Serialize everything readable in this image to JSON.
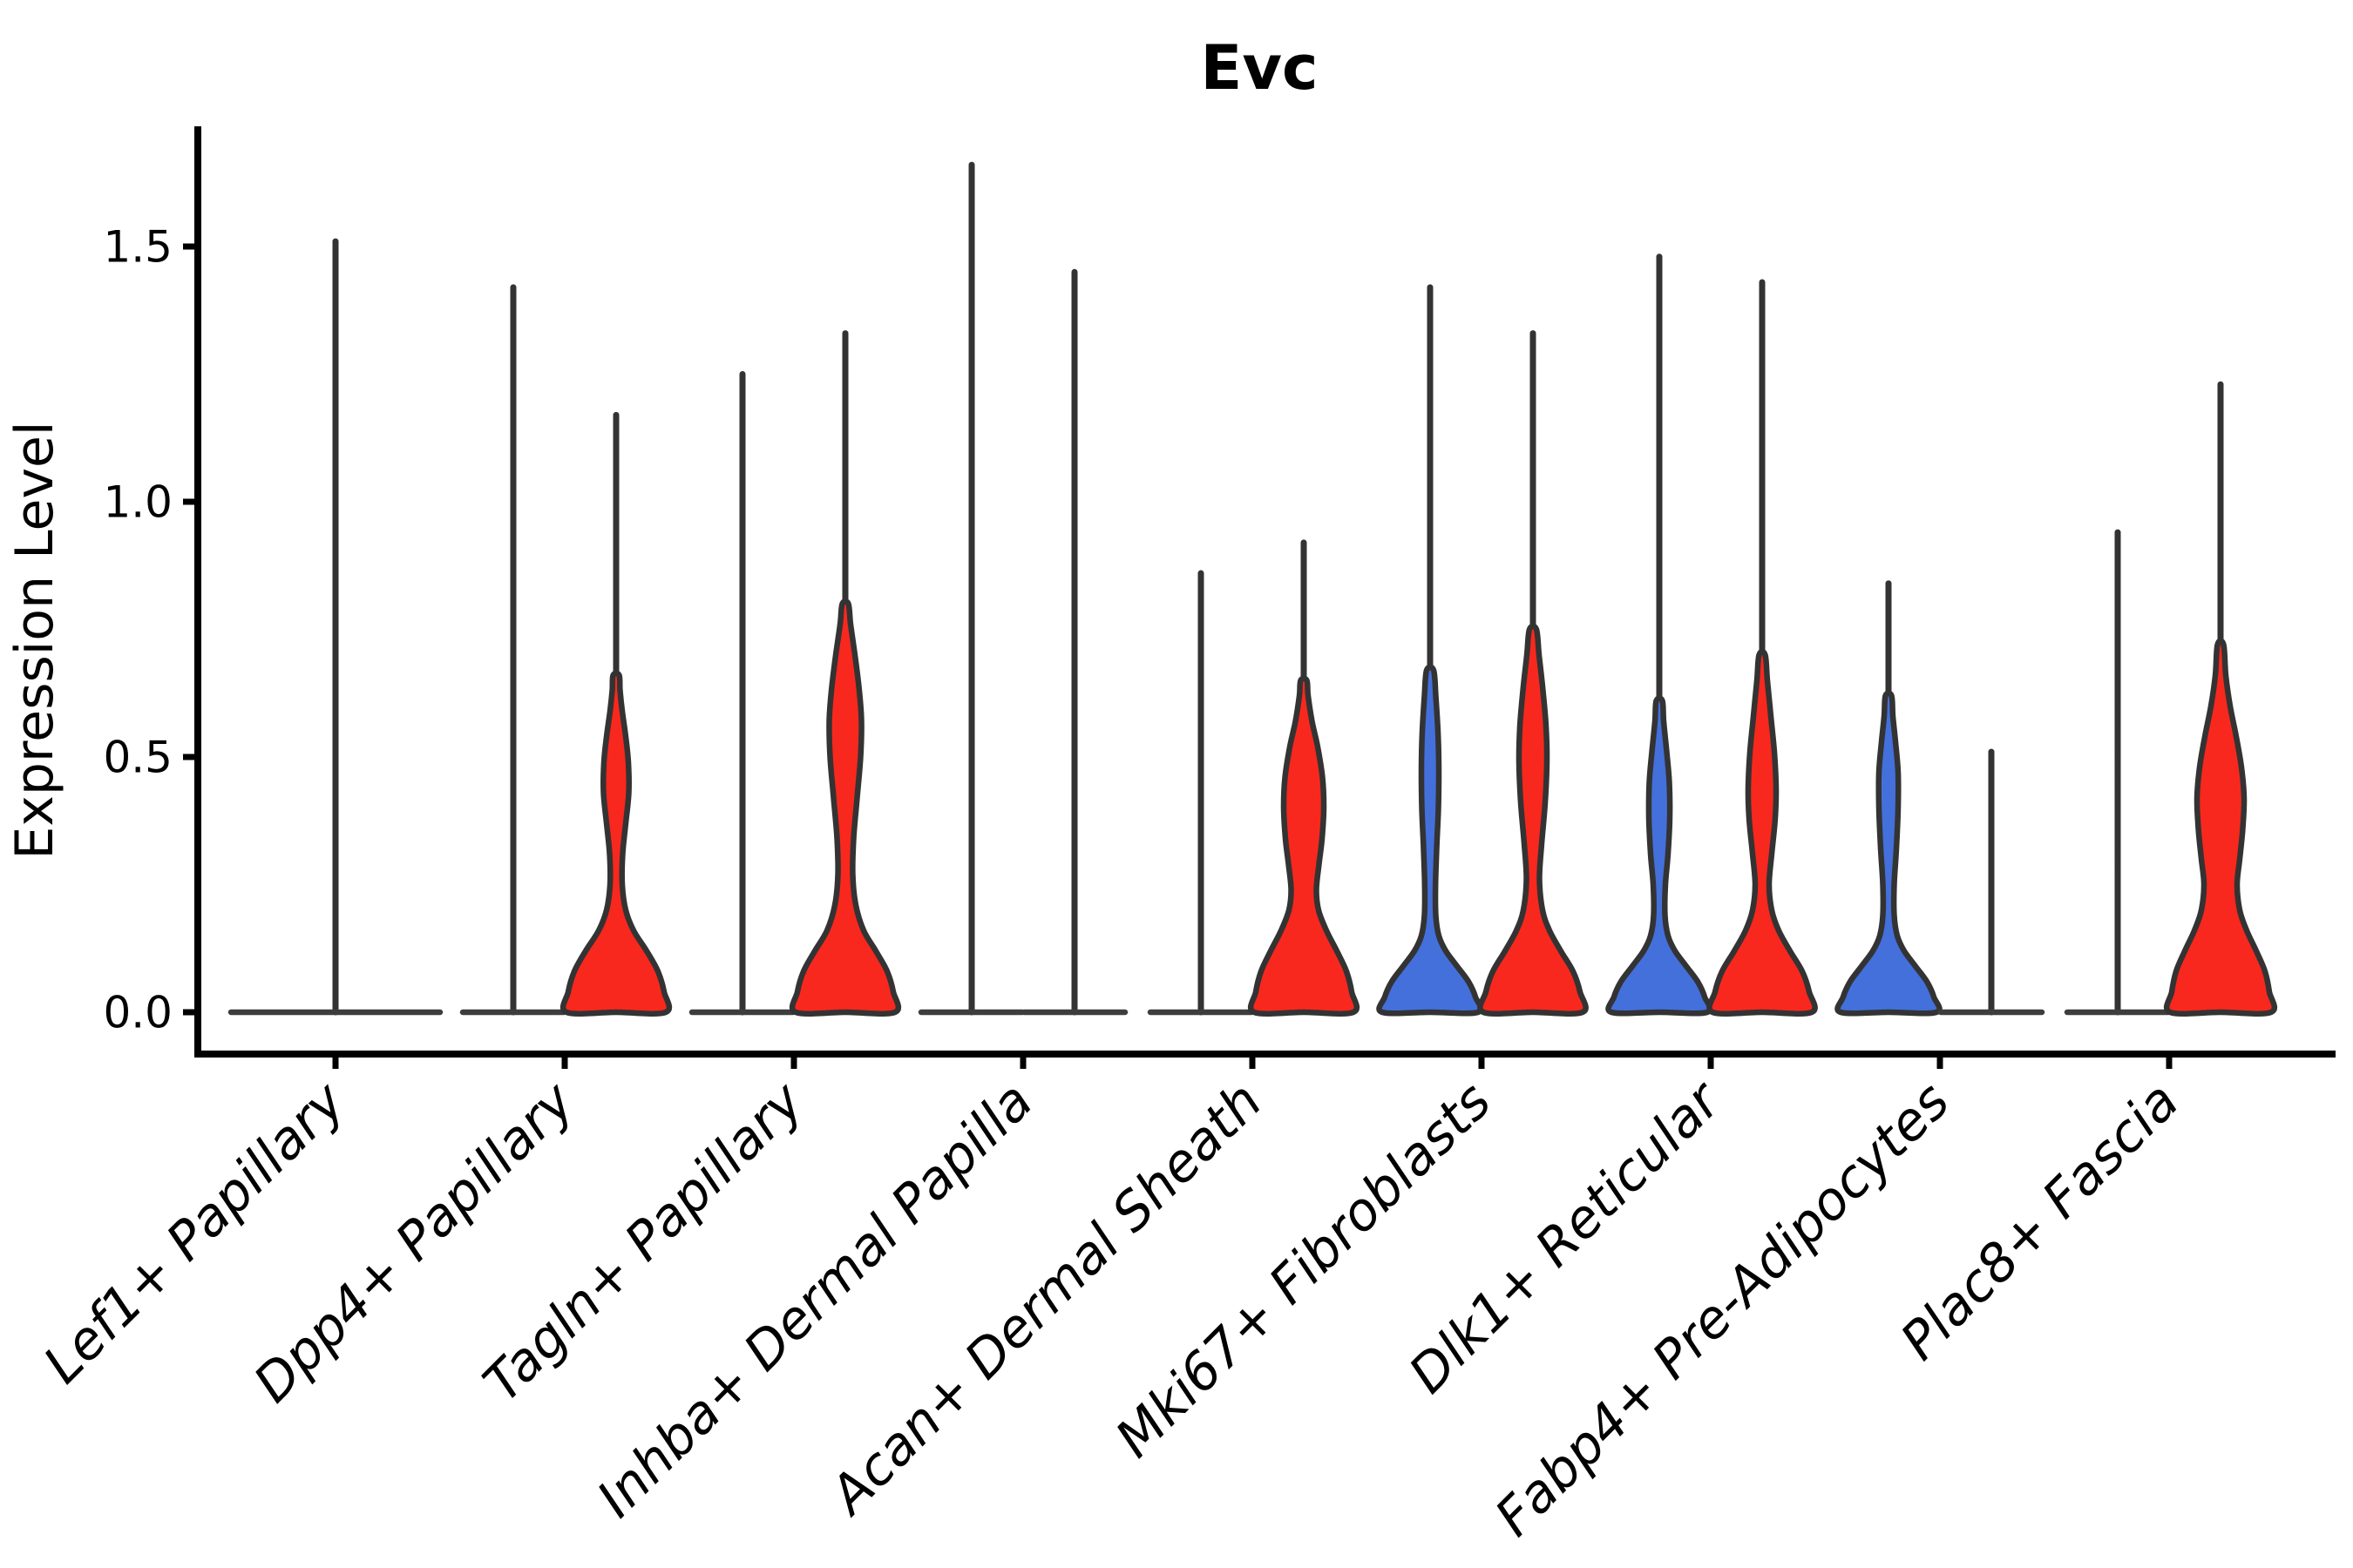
{
  "chart_data": {
    "type": "violin",
    "title": "Evc",
    "ylabel": "Expression Level",
    "xlabel": "",
    "ytick_labels": [
      "0.0",
      "0.5",
      "1.0",
      "1.5"
    ],
    "ytick_values": [
      0,
      0.5,
      1.0,
      1.5
    ],
    "ylim": [
      -0.08,
      1.73
    ],
    "grid": false,
    "legend": "none",
    "categories": [
      "Lef1+ Papillary",
      "Dpp4+ Papillary",
      "Tagln+ Papillary",
      "Inhba+ Dermal Papilla",
      "Acan+ Dermal Sheath",
      "Mki67+ Fibroblasts",
      "Dlk1+ Reticular",
      "Fabp4+ Pre-Adipocytes",
      "Plac8+ Fascia"
    ],
    "colors": {
      "red_fill": "#F8281E",
      "blue_fill": "#4470DB",
      "outline": "#333333",
      "flat_line": "#3D3D3D",
      "axis": "#000000",
      "point": "#333333"
    },
    "groups": [
      {
        "category": "Lef1+ Papillary",
        "violins": [
          {
            "side": "center",
            "kind": "flat",
            "fill": "none",
            "max": 1.51,
            "half_len": 120,
            "points": []
          }
        ]
      },
      {
        "category": "Dpp4+ Papillary",
        "violins": [
          {
            "side": "left",
            "kind": "flat",
            "fill": "none",
            "max": 1.42,
            "half_len": 58,
            "points": []
          },
          {
            "side": "right",
            "kind": "violin",
            "fill": "red",
            "max": 1.17,
            "profile": [
              [
                0,
                57
              ],
              [
                0.04,
                55
              ],
              [
                0.08,
                48
              ],
              [
                0.12,
                35
              ],
              [
                0.16,
                20
              ],
              [
                0.2,
                11
              ],
              [
                0.25,
                7
              ],
              [
                0.31,
                7.5
              ],
              [
                0.37,
                11
              ],
              [
                0.43,
                14.5
              ],
              [
                0.49,
                14
              ],
              [
                0.54,
                11
              ],
              [
                0.59,
                7
              ],
              [
                0.63,
                4.5
              ],
              [
                0.66,
                3.5
              ]
            ]
          }
        ]
      },
      {
        "category": "Tagln+ Papillary",
        "violins": [
          {
            "side": "left",
            "kind": "flat",
            "fill": "none",
            "max": 1.25,
            "half_len": 58,
            "points": []
          },
          {
            "side": "right",
            "kind": "violin",
            "fill": "red",
            "max": 1.33,
            "profile": [
              [
                0,
                57
              ],
              [
                0.04,
                55
              ],
              [
                0.08,
                48
              ],
              [
                0.12,
                35
              ],
              [
                0.16,
                21
              ],
              [
                0.21,
                12
              ],
              [
                0.27,
                8.5
              ],
              [
                0.34,
                9.5
              ],
              [
                0.42,
                13.5
              ],
              [
                0.5,
                17.5
              ],
              [
                0.57,
                18.5
              ],
              [
                0.63,
                16
              ],
              [
                0.7,
                11
              ],
              [
                0.76,
                6
              ],
              [
                0.8,
                3.5
              ]
            ]
          }
        ]
      },
      {
        "category": "Inhba+ Dermal Papilla",
        "violins": [
          {
            "side": "left",
            "kind": "flat",
            "fill": "none",
            "max": 1.66,
            "half_len": 58,
            "points": []
          },
          {
            "side": "right",
            "kind": "flat",
            "fill": "none",
            "max": 1.45,
            "half_len": 58,
            "points": []
          }
        ]
      },
      {
        "category": "Acan+ Dermal Sheath",
        "violins": [
          {
            "side": "left",
            "kind": "flat",
            "fill": "none",
            "max": 0.86,
            "half_len": 58,
            "points": [
              0.84,
              0.8,
              0.74,
              0.64,
              0.57,
              0.54,
              0.49,
              0.46,
              0.44,
              0.42,
              0.39,
              0.37,
              0.34,
              0.32,
              0.3
            ]
          },
          {
            "side": "right",
            "kind": "violin",
            "fill": "red",
            "max": 0.92,
            "profile": [
              [
                0,
                57
              ],
              [
                0.04,
                55
              ],
              [
                0.08,
                49
              ],
              [
                0.12,
                38
              ],
              [
                0.16,
                26
              ],
              [
                0.2,
                17
              ],
              [
                0.24,
                14.5
              ],
              [
                0.29,
                17.5
              ],
              [
                0.34,
                21
              ],
              [
                0.4,
                23
              ],
              [
                0.46,
                21.5
              ],
              [
                0.52,
                16
              ],
              [
                0.57,
                9.5
              ],
              [
                0.62,
                5
              ],
              [
                0.65,
                3.5
              ]
            ]
          }
        ]
      },
      {
        "category": "Mki67+ Fibroblasts",
        "violins": [
          {
            "side": "left",
            "kind": "violin",
            "fill": "blue",
            "max": 1.42,
            "profile": [
              [
                0,
                55
              ],
              [
                0.03,
                52
              ],
              [
                0.06,
                44
              ],
              [
                0.09,
                31
              ],
              [
                0.12,
                18
              ],
              [
                0.15,
                10
              ],
              [
                0.19,
                6.5
              ],
              [
                0.25,
                6.2
              ],
              [
                0.32,
                7.5
              ],
              [
                0.4,
                9.5
              ],
              [
                0.48,
                10
              ],
              [
                0.55,
                9
              ],
              [
                0.62,
                6.5
              ],
              [
                0.67,
                4
              ]
            ]
          },
          {
            "side": "right",
            "kind": "violin",
            "fill": "red",
            "max": 1.33,
            "profile": [
              [
                0,
                57
              ],
              [
                0.04,
                54
              ],
              [
                0.08,
                46
              ],
              [
                0.12,
                32
              ],
              [
                0.16,
                19
              ],
              [
                0.2,
                11
              ],
              [
                0.26,
                7.5
              ],
              [
                0.33,
                10
              ],
              [
                0.41,
                14
              ],
              [
                0.49,
                16
              ],
              [
                0.56,
                15
              ],
              [
                0.63,
                11.5
              ],
              [
                0.7,
                7
              ],
              [
                0.75,
                4
              ]
            ]
          }
        ]
      },
      {
        "category": "Dlk1+ Reticular",
        "violins": [
          {
            "side": "left",
            "kind": "violin",
            "fill": "blue",
            "max": 1.48,
            "profile": [
              [
                0,
                55
              ],
              [
                0.03,
                52
              ],
              [
                0.06,
                44
              ],
              [
                0.09,
                31
              ],
              [
                0.12,
                18
              ],
              [
                0.15,
                10
              ],
              [
                0.19,
                6.5
              ],
              [
                0.25,
                7
              ],
              [
                0.31,
                10
              ],
              [
                0.38,
                12
              ],
              [
                0.45,
                11.5
              ],
              [
                0.51,
                8.5
              ],
              [
                0.57,
                5
              ],
              [
                0.61,
                3.5
              ]
            ]
          },
          {
            "side": "right",
            "kind": "violin",
            "fill": "red",
            "max": 1.43,
            "profile": [
              [
                0,
                57
              ],
              [
                0.04,
                54
              ],
              [
                0.08,
                46
              ],
              [
                0.12,
                32
              ],
              [
                0.16,
                19
              ],
              [
                0.2,
                11
              ],
              [
                0.25,
                8
              ],
              [
                0.31,
                11
              ],
              [
                0.38,
                15
              ],
              [
                0.44,
                16
              ],
              [
                0.51,
                14
              ],
              [
                0.58,
                10
              ],
              [
                0.65,
                6
              ],
              [
                0.7,
                3.5
              ]
            ]
          }
        ]
      },
      {
        "category": "Fabp4+ Pre-Adipocytes",
        "violins": [
          {
            "side": "left",
            "kind": "violin",
            "fill": "blue",
            "max": 0.84,
            "profile": [
              [
                0,
                55
              ],
              [
                0.03,
                52
              ],
              [
                0.06,
                44
              ],
              [
                0.09,
                31
              ],
              [
                0.12,
                18
              ],
              [
                0.15,
                10
              ],
              [
                0.19,
                6.5
              ],
              [
                0.25,
                6.5
              ],
              [
                0.32,
                9
              ],
              [
                0.4,
                11
              ],
              [
                0.47,
                11
              ],
              [
                0.53,
                8
              ],
              [
                0.58,
                5
              ],
              [
                0.62,
                3.5
              ]
            ]
          },
          {
            "side": "right",
            "kind": "flat",
            "fill": "none",
            "max": 0.51,
            "half_len": 58,
            "points": [
              0.51,
              0.49,
              0.48,
              0.35,
              0.34,
              0.2,
              0.18
            ]
          }
        ]
      },
      {
        "category": "Plac8+ Fascia",
        "violins": [
          {
            "side": "left",
            "kind": "flat",
            "fill": "none",
            "max": 0.94,
            "half_len": 58,
            "points": [
              0.65,
              0.59,
              0.56,
              0.53,
              0.5,
              0.47,
              0.44,
              0.41,
              0.38,
              0.35,
              0.31,
              0.28,
              0.24
            ]
          },
          {
            "side": "right",
            "kind": "violin",
            "fill": "red",
            "max": 1.23,
            "profile": [
              [
                0,
                58
              ],
              [
                0.04,
                56
              ],
              [
                0.08,
                51
              ],
              [
                0.12,
                41
              ],
              [
                0.16,
                30
              ],
              [
                0.2,
                22
              ],
              [
                0.25,
                19
              ],
              [
                0.3,
                22
              ],
              [
                0.36,
                25.5
              ],
              [
                0.42,
                27
              ],
              [
                0.48,
                24
              ],
              [
                0.54,
                18
              ],
              [
                0.6,
                11
              ],
              [
                0.66,
                6
              ],
              [
                0.72,
                3.5
              ]
            ]
          }
        ]
      }
    ]
  }
}
